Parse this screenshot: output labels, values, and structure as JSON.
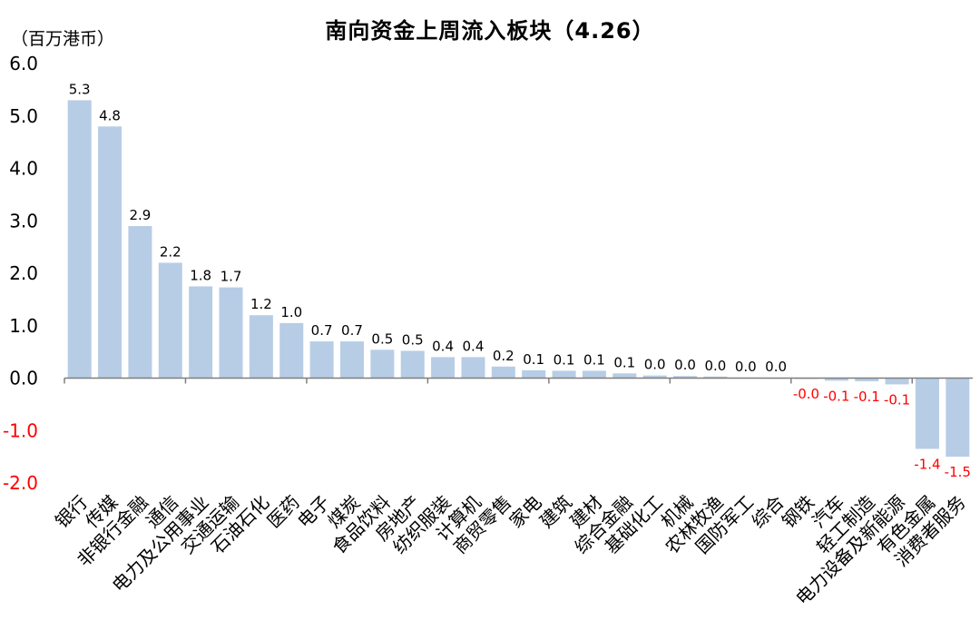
{
  "chart_data": {
    "type": "bar",
    "title": "南向资金上周流入板块（4.26）",
    "unit_label": "（百万港币）",
    "ylim": [
      -2.0,
      6.0
    ],
    "yticks": [
      "6.0",
      "5.0",
      "4.0",
      "3.0",
      "2.0",
      "1.0",
      "0.0",
      "-1.0",
      "-2.0"
    ],
    "ytick_values": [
      6,
      5,
      4,
      3,
      2,
      1,
      0,
      -1,
      -2
    ],
    "categories": [
      "银行",
      "传媒",
      "非银行金融",
      "通信",
      "电力及公用事业",
      "交通运输",
      "石油石化",
      "医药",
      "电子",
      "煤炭",
      "食品饮料",
      "房地产",
      "纺织服装",
      "计算机",
      "商贸零售",
      "家电",
      "建筑",
      "建材",
      "综合金融",
      "基础化工",
      "机械",
      "农林牧渔",
      "国防军工",
      "综合",
      "钢铁",
      "汽车",
      "轻工制造",
      "电力设备及新能源",
      "有色金属",
      "消费者服务"
    ],
    "values": [
      5.3,
      4.8,
      2.9,
      2.2,
      1.75,
      1.73,
      1.2,
      1.05,
      0.7,
      0.7,
      0.54,
      0.52,
      0.4,
      0.4,
      0.22,
      0.15,
      0.14,
      0.14,
      0.09,
      0.05,
      0.04,
      0.03,
      0.01,
      0.005,
      -0.01,
      -0.05,
      -0.06,
      -0.12,
      -1.35,
      -1.5
    ],
    "labels": [
      "5.3",
      "4.8",
      "2.9",
      "2.2",
      "1.8",
      "1.7",
      "1.2",
      "1.0",
      "0.7",
      "0.7",
      "0.5",
      "0.5",
      "0.4",
      "0.4",
      "0.2",
      "0.1",
      "0.1",
      "0.1",
      "0.1",
      "0.0",
      "0.0",
      "0.0",
      "0.0",
      "0.0",
      "-0.0",
      "-0.1",
      "-0.1",
      "-0.1",
      "-1.4",
      "-1.5"
    ],
    "grid": false,
    "colors": {
      "bar": "#b7cde6",
      "axis": "#7f7f7f",
      "positive_text": "#000000",
      "negative_text": "#ff0000"
    }
  }
}
